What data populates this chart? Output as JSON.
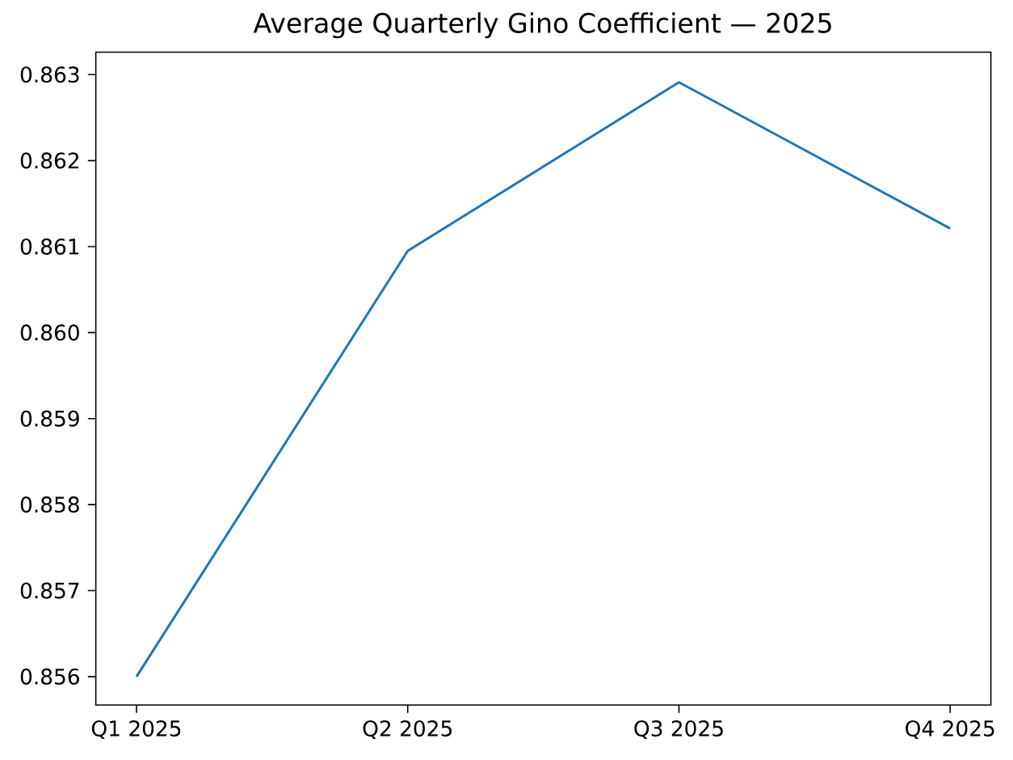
{
  "chart_data": {
    "type": "line",
    "title": "Average Quarterly Gino Coefficient — 2025",
    "categories": [
      "Q1 2025",
      "Q2 2025",
      "Q3 2025",
      "Q4 2025"
    ],
    "series": [
      {
        "color": "#1f77b4",
        "values": [
          0.856,
          0.86095,
          0.86291,
          0.86121
        ]
      }
    ],
    "ylim": [
      0.85567,
      0.86326
    ],
    "yticks": [
      0.856,
      0.857,
      0.858,
      0.859,
      {
        "value": 0.86,
        "label": "0.860"
      },
      0.861,
      0.862,
      0.863
    ],
    "grid": false,
    "marker": "none",
    "line_style": "solid"
  }
}
